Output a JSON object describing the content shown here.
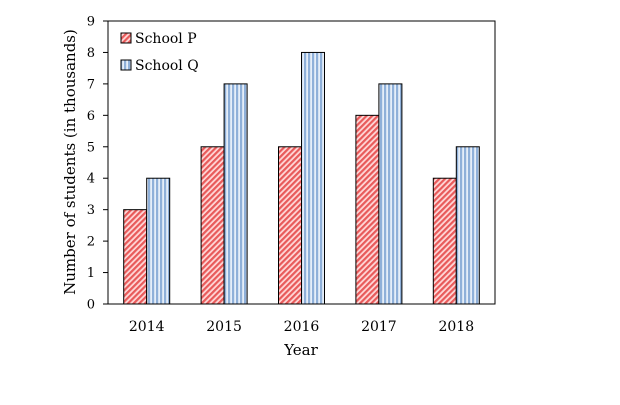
{
  "chart_data": {
    "type": "bar",
    "categories": [
      "2014",
      "2015",
      "2016",
      "2017",
      "2018"
    ],
    "series": [
      {
        "name": "School P",
        "values": [
          3,
          5,
          5,
          6,
          4
        ],
        "color": "#f07070",
        "pattern": "diagonal-hatch"
      },
      {
        "name": "School Q",
        "values": [
          4,
          7,
          8,
          7,
          5
        ],
        "color": "#9fbbdd",
        "pattern": "vertical-stripes"
      }
    ],
    "xlabel": "Year",
    "ylabel": "Number of students (in thousands)",
    "ylim": [
      0,
      9
    ],
    "yticks": [
      "0",
      "1",
      "2",
      "3",
      "4",
      "5",
      "6",
      "7",
      "8",
      "9"
    ],
    "grid": false,
    "legend_position": "top-left"
  }
}
